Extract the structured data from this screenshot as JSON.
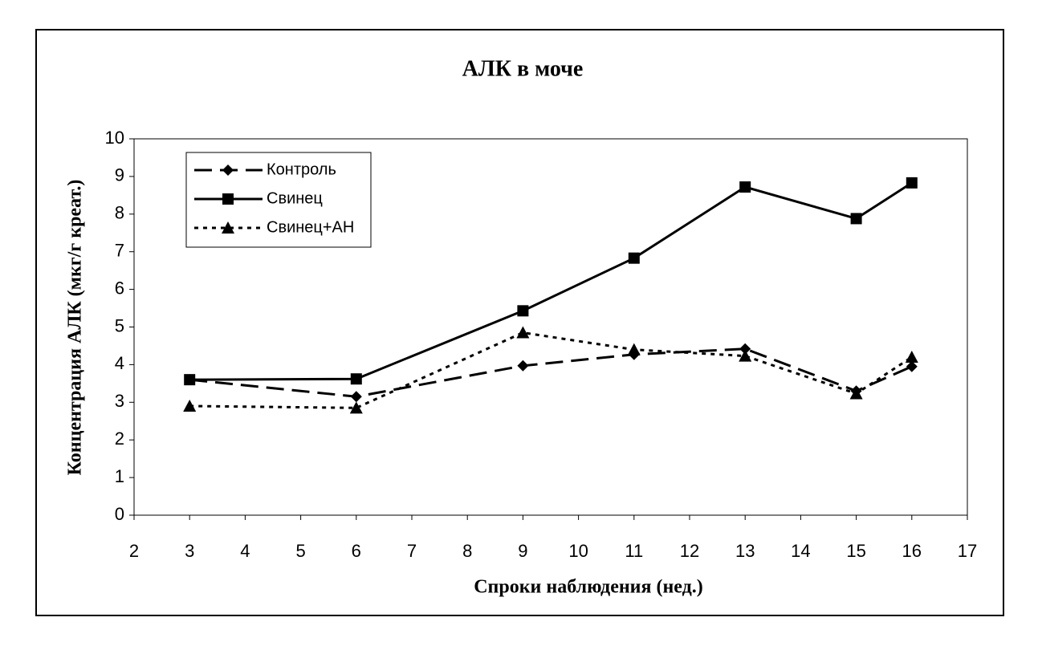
{
  "chart_data": {
    "type": "line",
    "title": "АЛК в моче",
    "x_label": "Спроки наблюдения (нед.)",
    "y_label": "Концентрация АЛК (мкг/г креат.)",
    "x": [
      3,
      6,
      9,
      11,
      13,
      15,
      16
    ],
    "series": [
      {
        "name": "Контроль",
        "color": "#000000",
        "dash": "dash",
        "marker": "diamond",
        "values": [
          3.6,
          3.15,
          3.97,
          4.27,
          4.42,
          3.3,
          3.95
        ]
      },
      {
        "name": "Свинец",
        "color": "#000000",
        "dash": "solid",
        "marker": "square",
        "values": [
          3.6,
          3.62,
          5.43,
          6.83,
          8.72,
          7.88,
          8.83
        ]
      },
      {
        "name": "Свинец+АН",
        "color": "#000000",
        "dash": "dot",
        "marker": "triangle",
        "values": [
          2.9,
          2.85,
          4.85,
          4.4,
          4.23,
          3.23,
          4.2
        ]
      }
    ],
    "xlim": [
      2,
      17
    ],
    "xticks": [
      2,
      3,
      4,
      5,
      6,
      7,
      8,
      9,
      10,
      11,
      12,
      13,
      14,
      15,
      16,
      17
    ],
    "ylim": [
      0,
      10
    ],
    "yticks": [
      0,
      1,
      2,
      3,
      4,
      5,
      6,
      7,
      8,
      9,
      10
    ],
    "grid": false,
    "legend": "upper left"
  }
}
